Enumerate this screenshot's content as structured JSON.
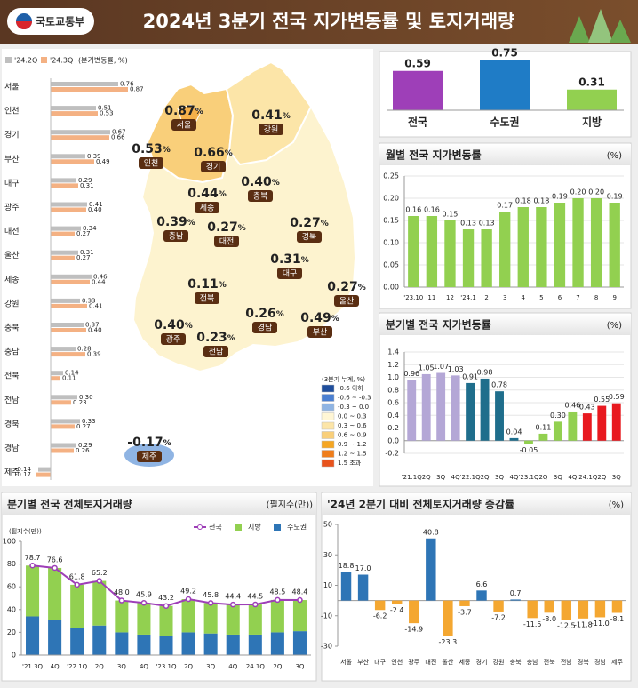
{
  "header": {
    "logo": "국토교통부",
    "title": "2024년 3분기 전국 지가변동률 및 토지거래량"
  },
  "map": {
    "regions": [
      "서울",
      "인천",
      "경기",
      "강원",
      "충북",
      "세종",
      "충남",
      "대전",
      "경북",
      "대구",
      "울산",
      "전북",
      "경남",
      "부산",
      "광주",
      "전남",
      "제주"
    ],
    "values": [
      0.87,
      0.53,
      0.66,
      0.41,
      0.4,
      0.44,
      0.39,
      0.27,
      0.27,
      0.31,
      0.27,
      0.11,
      0.26,
      0.49,
      0.4,
      0.23,
      -0.17
    ],
    "value_labels": [
      "0.87",
      "0.53",
      "0.66",
      "0.41",
      "0.40",
      "0.44",
      "0.39",
      "0.27",
      "0.27",
      "0.31",
      "0.27",
      "0.11",
      "0.26",
      "0.49",
      "0.40",
      "0.23",
      "-0.17"
    ],
    "unit": "%",
    "legend_title": "(3분기 누계, %)",
    "legend": [
      {
        "label": "-0.6 이하",
        "color": "#1f4e9c"
      },
      {
        "label": "-0.6 ~ -0.3",
        "color": "#4a7fd1"
      },
      {
        "label": "-0.3 ~ 0.0",
        "color": "#8fb4e3"
      },
      {
        "label": "0.0 ~ 0.3",
        "color": "#fff6d5"
      },
      {
        "label": "0.3 ~ 0.6",
        "color": "#fce5a8"
      },
      {
        "label": "0.6 ~ 0.9",
        "color": "#f9cf7a"
      },
      {
        "label": "0.9 ~ 1.2",
        "color": "#f5a623"
      },
      {
        "label": "1.2 ~ 1.5",
        "color": "#ef7d1a"
      },
      {
        "label": "1.5 초과",
        "color": "#e8531c"
      }
    ]
  },
  "chart_data": [
    {
      "type": "hbar",
      "note": "(분기변동률, %)",
      "categories": [
        "서울",
        "인천",
        "경기",
        "부산",
        "대구",
        "광주",
        "대전",
        "울산",
        "세종",
        "강원",
        "충북",
        "충남",
        "전북",
        "전남",
        "경북",
        "경남",
        "제주"
      ],
      "series": [
        {
          "name": "'24.2Q",
          "color": "#bfbfbf",
          "values": [
            0.76,
            0.51,
            0.67,
            0.39,
            0.29,
            0.41,
            0.34,
            0.31,
            0.46,
            0.33,
            0.37,
            0.28,
            0.14,
            0.3,
            0.33,
            0.29,
            -0.14
          ],
          "value_labels": [
            "0.76",
            "0.51",
            "0.67",
            "0.39",
            "0.29",
            "0.41",
            "0.34",
            "0.31",
            "0.46",
            "0.33",
            "0.37",
            "0.28",
            "0.14",
            "0.30",
            "0.33",
            "0.29",
            "-0.14"
          ]
        },
        {
          "name": "'24.3Q",
          "color": "#f4b183",
          "values": [
            0.87,
            0.53,
            0.66,
            0.49,
            0.31,
            0.4,
            0.27,
            0.27,
            0.44,
            0.41,
            0.4,
            0.39,
            0.11,
            0.23,
            0.27,
            0.26,
            -0.17
          ],
          "value_labels": [
            "0.87",
            "0.53",
            "0.66",
            "0.49",
            "0.31",
            "0.40",
            "0.27",
            "0.27",
            "0.44",
            "0.41",
            "0.40",
            "0.39",
            "0.11",
            "0.23",
            "0.27",
            "0.26",
            "-0.17"
          ]
        }
      ]
    },
    {
      "type": "summary",
      "categories": [
        "전국",
        "수도권",
        "지방"
      ],
      "values": [
        0.59,
        0.75,
        0.31
      ],
      "colors": [
        "#9e3fb8",
        "#1f7cc6",
        "#92d050"
      ]
    },
    {
      "type": "bar",
      "title": "월별 전국 지가변동률",
      "unit": "(%)",
      "grid": true,
      "color": "#92d050",
      "categories": [
        "'23.10",
        "11",
        "12",
        "'24.1",
        "2",
        "3",
        "4",
        "5",
        "6",
        "7",
        "8",
        "9"
      ],
      "values": [
        0.16,
        0.16,
        0.15,
        0.13,
        0.13,
        0.17,
        0.18,
        0.18,
        0.19,
        0.2,
        0.2,
        0.19
      ],
      "value_labels": [
        "0.16",
        "0.16",
        "0.15",
        "0.13",
        "0.13",
        "0.17",
        "0.18",
        "0.18",
        "0.19",
        "0.20",
        "0.20",
        "0.19"
      ],
      "ylim": [
        0,
        0.25
      ],
      "yticks": [
        {
          "value": 0,
          "label": "0.00"
        },
        {
          "value": 0.05,
          "label": "0.05"
        },
        {
          "value": 0.1,
          "label": "0.10"
        },
        {
          "value": 0.15,
          "label": "0.15"
        },
        {
          "value": 0.2,
          "label": "0.20"
        },
        {
          "value": 0.25,
          "label": "0.25"
        }
      ]
    },
    {
      "type": "bar",
      "title": "분기별 전국 지가변동률",
      "unit": "(%)",
      "grid": true,
      "categories": [
        "'21.1Q",
        "2Q",
        "3Q",
        "4Q",
        "'22.1Q",
        "2Q",
        "3Q",
        "4Q",
        "'23.1Q",
        "2Q",
        "3Q",
        "4Q",
        "'24.1Q",
        "2Q",
        "3Q"
      ],
      "values": [
        0.96,
        1.05,
        1.07,
        1.03,
        0.91,
        0.98,
        0.78,
        0.04,
        -0.05,
        0.11,
        0.3,
        0.46,
        0.43,
        0.55,
        0.59
      ],
      "value_labels": [
        "0.96",
        "1.05",
        "1.07",
        "1.03",
        "0.91",
        "0.98",
        "0.78",
        "0.04",
        "-0.05",
        "0.11",
        "0.30",
        "0.46",
        "0.43",
        "0.55",
        "0.59"
      ],
      "colors": [
        "#b4a7d6",
        "#b4a7d6",
        "#b4a7d6",
        "#b4a7d6",
        "#1f6e8c",
        "#1f6e8c",
        "#1f6e8c",
        "#1f6e8c",
        "#92d050",
        "#92d050",
        "#92d050",
        "#92d050",
        "#e8191f",
        "#e8191f",
        "#e8191f"
      ],
      "ylim": [
        -0.2,
        1.4
      ],
      "yticks": [
        -0.2,
        {
          "value": 0,
          "label": "0.0"
        },
        0.2,
        0.4,
        0.6,
        0.8,
        {
          "value": 1,
          "label": "1.0"
        },
        1.2,
        1.4
      ]
    },
    {
      "type": "combo",
      "title": "분기별 전국 전체토지거래량",
      "unit": "(필지수(만))",
      "y_label": "(필지수(만))",
      "categories": [
        "'21.3Q",
        "4Q",
        "'22.1Q",
        "2Q",
        "3Q",
        "4Q",
        "'23.1Q",
        "2Q",
        "3Q",
        "4Q",
        "24.1Q",
        "2Q",
        "3Q"
      ],
      "series": [
        {
          "name": "전국",
          "kind": "line",
          "color": "#9e3fb8",
          "values": [
            78.7,
            76.6,
            61.8,
            65.2,
            48.0,
            45.9,
            43.2,
            49.2,
            45.8,
            44.4,
            44.5,
            48.5,
            48.4
          ],
          "value_labels": [
            "78.7",
            "76.6",
            "61.8",
            "65.2",
            "48.0",
            "45.9",
            "43.2",
            "49.2",
            "45.8",
            "44.4",
            "44.5",
            "48.5",
            "48.4"
          ]
        },
        {
          "name": "지방",
          "kind": "bar",
          "color": "#92d050",
          "values": [
            44.7,
            45.6,
            37.8,
            39.2,
            28.0,
            27.9,
            26.2,
            29.2,
            26.8,
            26.4,
            26.5,
            28.5,
            27.4
          ]
        },
        {
          "name": "수도권",
          "kind": "bar",
          "color": "#2e75b6",
          "values": [
            34,
            31,
            24,
            26,
            20,
            18,
            17,
            20,
            19,
            18,
            18,
            20,
            21
          ]
        }
      ],
      "ylim": [
        0,
        100
      ],
      "yticks": [
        0,
        20,
        40,
        60,
        80,
        100
      ]
    },
    {
      "type": "bar",
      "title": "'24년 2분기 대비 전체토지거래량 증감률",
      "unit": "(%)",
      "grid": false,
      "categories": [
        "서울",
        "부산",
        "대구",
        "인천",
        "광주",
        "대전",
        "울산",
        "세종",
        "경기",
        "강원",
        "충북",
        "충남",
        "전북",
        "전남",
        "경북",
        "경남",
        "제주"
      ],
      "values": [
        18.8,
        17.0,
        -6.2,
        -2.4,
        -14.9,
        40.8,
        -23.3,
        -3.7,
        6.6,
        -7.2,
        0.7,
        -11.5,
        -8.0,
        -12.5,
        -11.8,
        -11.0,
        -8.1
      ],
      "value_labels": [
        "18.8",
        "17.0",
        "-6.2",
        "-2.4",
        "-14.9",
        "40.8",
        "-23.3",
        "-3.7",
        "6.6",
        "-7.2",
        "0.7",
        "-11.5",
        "-8.0",
        "-12.5",
        "-11.8",
        "-11.0",
        "-8.1"
      ],
      "colors": [
        "#2e75b6",
        "#2e75b6",
        "#f4a731",
        "#f4a731",
        "#f4a731",
        "#2e75b6",
        "#f4a731",
        "#f4a731",
        "#2e75b6",
        "#f4a731",
        "#2e75b6",
        "#f4a731",
        "#f4a731",
        "#f4a731",
        "#f4a731",
        "#f4a731",
        "#f4a731"
      ],
      "ylim": [
        -30,
        50
      ],
      "yticks": [
        -30,
        -10,
        10,
        30,
        50
      ]
    }
  ]
}
